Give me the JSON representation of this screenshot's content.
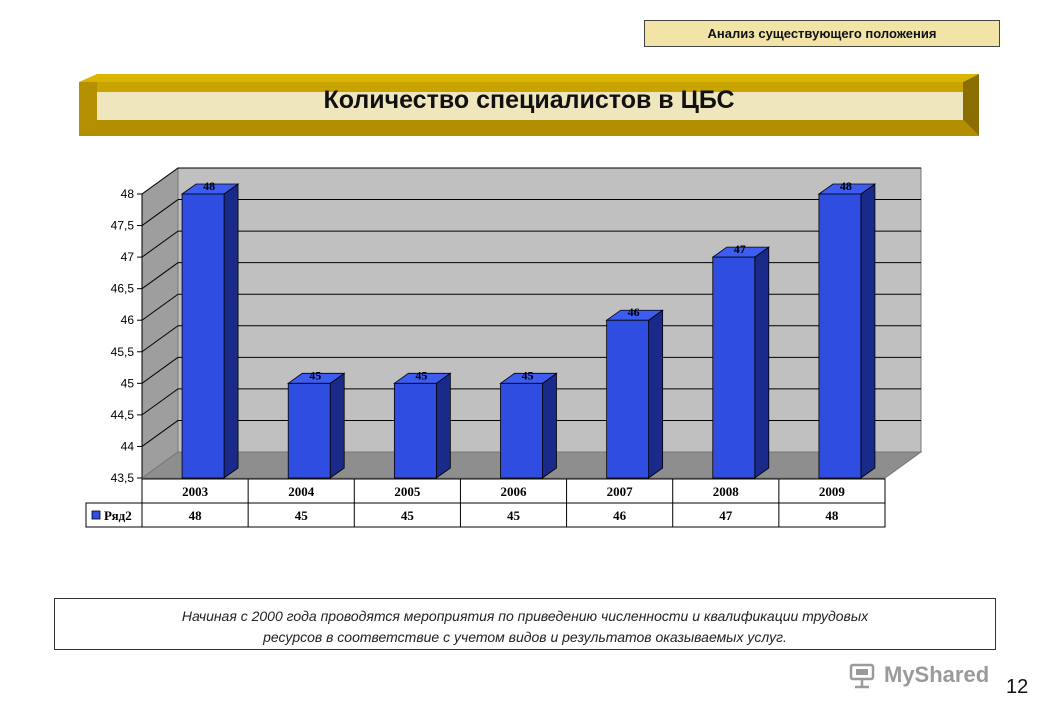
{
  "header": {
    "section_label": "Анализ существующего положения",
    "title": "Количество специалистов в ЦБС"
  },
  "chart_data": {
    "type": "bar",
    "categories": [
      "2003",
      "2004",
      "2005",
      "2006",
      "2007",
      "2008",
      "2009"
    ],
    "series": [
      {
        "name": "Ряд2",
        "values": [
          48,
          45,
          45,
          45,
          46,
          47,
          48
        ],
        "color": "#2f4de0"
      }
    ],
    "title": "",
    "xlabel": "",
    "ylabel": "",
    "ylim": [
      43.5,
      48
    ],
    "yticks": [
      "43,5",
      "44",
      "44,5",
      "45",
      "45,5",
      "46",
      "46,5",
      "47",
      "47,5",
      "48"
    ],
    "data_labels": [
      "48",
      "45",
      "45",
      "45",
      "46",
      "47",
      "48"
    ],
    "grid": true,
    "legend": "data-table-left",
    "data_table": true
  },
  "note": {
    "line1": "Начиная с 2000 года  проводятся мероприятия  по приведению  численности и квалификации трудовых",
    "line2": "ресурсов в соответствие  с учетом видов и результатов оказываемых услуг."
  },
  "watermark": {
    "text": "MyShared",
    "icon": "myshared-logo-icon"
  },
  "page_number": "12"
}
